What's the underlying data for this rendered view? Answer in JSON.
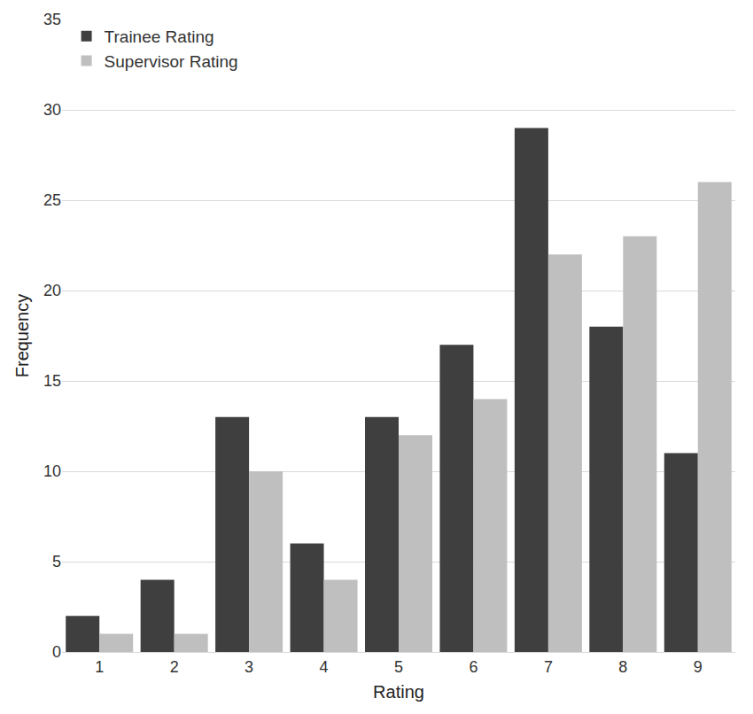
{
  "chart_data": {
    "type": "bar",
    "x_label": "Rating",
    "y_label": "Frequency",
    "categories": [
      "1",
      "2",
      "3",
      "4",
      "5",
      "6",
      "7",
      "8",
      "9"
    ],
    "series": [
      {
        "name": "Trainee Rating",
        "color": "#3f3f3f",
        "values": [
          2,
          4,
          13,
          6,
          13,
          17,
          29,
          18,
          11
        ]
      },
      {
        "name": "Supervisor Rating",
        "color": "#bfbfbf",
        "values": [
          1,
          1,
          10,
          4,
          12,
          14,
          22,
          23,
          26
        ]
      }
    ],
    "ylim": [
      0,
      35
    ],
    "yticks": [
      0,
      5,
      10,
      15,
      20,
      25,
      30,
      35
    ],
    "grid": true,
    "legend": "top-left"
  }
}
